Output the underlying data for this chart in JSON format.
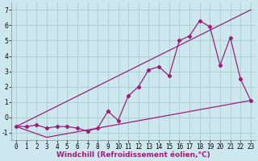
{
  "title": "",
  "xlabel": "Windchill (Refroidissement éolien,°C)",
  "bg_color": "#cce8ee",
  "grid_color": "#aacccc",
  "line_color": "#9b1f7a",
  "xlim": [
    -0.5,
    23.5
  ],
  "ylim": [
    -1.5,
    7.5
  ],
  "xticks": [
    0,
    1,
    2,
    3,
    4,
    5,
    6,
    7,
    8,
    9,
    10,
    11,
    12,
    13,
    14,
    15,
    16,
    17,
    18,
    19,
    20,
    21,
    22,
    23
  ],
  "yticks": [
    -1,
    0,
    1,
    2,
    3,
    4,
    5,
    6,
    7
  ],
  "line1_x": [
    0,
    1,
    2,
    3,
    4,
    5,
    6,
    7,
    8,
    9,
    10,
    11,
    12,
    13,
    14,
    15,
    16,
    17,
    18,
    19,
    20,
    21,
    22,
    23
  ],
  "line1_y": [
    -0.6,
    -0.6,
    -0.5,
    -0.7,
    -0.6,
    -0.6,
    -0.7,
    -0.9,
    -0.7,
    0.4,
    -0.2,
    1.4,
    2.0,
    3.1,
    3.3,
    2.7,
    5.0,
    5.3,
    6.3,
    5.9,
    3.4,
    5.2,
    2.5,
    1.1
  ],
  "line2_x": [
    0,
    3,
    23
  ],
  "line2_y": [
    -0.6,
    -1.3,
    1.1
  ],
  "line3_x": [
    0,
    23
  ],
  "line3_y": [
    -0.6,
    7.0
  ],
  "tick_fontsize": 5.5,
  "xlabel_fontsize": 6.5,
  "xlabel_fontweight": "bold"
}
